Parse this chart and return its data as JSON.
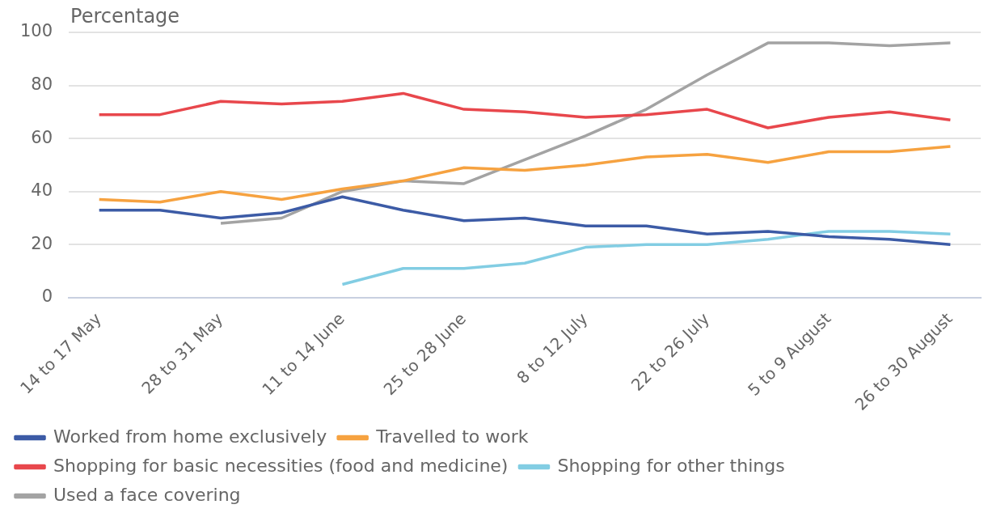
{
  "chart_data": {
    "type": "line",
    "ylabel": "Percentage",
    "categories": [
      "14 to 17 May",
      null,
      "28 to 31 May",
      null,
      "11 to 14 June",
      null,
      "25 to 28 June",
      null,
      "8 to 12 July",
      null,
      "22 to 26 July",
      null,
      "5 to 9 August",
      null,
      "26 to 30 August"
    ],
    "series": [
      {
        "name": "Worked from home exclusively",
        "color": "#3c5ba6",
        "values": [
          33,
          33,
          30,
          32,
          38,
          33,
          29,
          30,
          27,
          27,
          24,
          25,
          23,
          22,
          20
        ]
      },
      {
        "name": "Travelled to work",
        "color": "#f6a240",
        "values": [
          37,
          36,
          40,
          37,
          41,
          44,
          49,
          48,
          50,
          53,
          54,
          51,
          55,
          55,
          57
        ]
      },
      {
        "name": "Shopping for basic necessities (food and medicine)",
        "color": "#e8474c",
        "values": [
          69,
          69,
          74,
          73,
          74,
          77,
          71,
          70,
          68,
          69,
          71,
          64,
          68,
          70,
          67
        ]
      },
      {
        "name": "Shopping for other things",
        "color": "#82cde3",
        "values": [
          null,
          null,
          null,
          null,
          5,
          11,
          11,
          13,
          19,
          20,
          20,
          22,
          25,
          25,
          24
        ]
      },
      {
        "name": "Used a face covering",
        "color": "#a3a3a3",
        "values": [
          null,
          null,
          28,
          30,
          40,
          44,
          43,
          52,
          61,
          71,
          84,
          96,
          96,
          95,
          96
        ]
      }
    ],
    "ylim": [
      0,
      100
    ],
    "yticks": [
      0,
      20,
      40,
      60,
      80,
      100
    ],
    "grid": "y",
    "legend": "bottom",
    "marker": "none",
    "line_style": "solid"
  }
}
